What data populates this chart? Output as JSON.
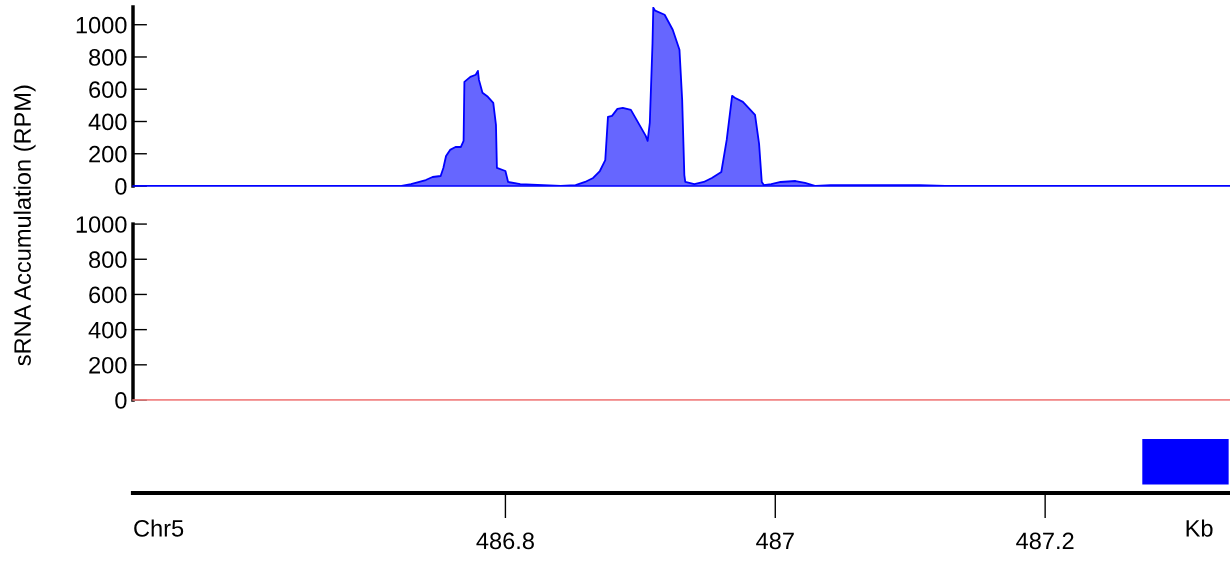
{
  "chart_data": [
    {
      "type": "area",
      "ylabel": "sRNA Accumulation (RPM)",
      "xlim": [
        486.524,
        487.337
      ],
      "ylim": [
        0,
        1110
      ],
      "yticks": [
        0,
        200,
        400,
        600,
        800,
        1000
      ],
      "tick_labels": "y",
      "grid": false,
      "series": [
        {
          "color": "#0000ff",
          "x": [
            486.524,
            486.722,
            486.73,
            486.741,
            486.746,
            486.752,
            486.754,
            486.756,
            486.759,
            486.763,
            486.767,
            486.769,
            486.7696,
            486.774,
            486.778,
            486.7796,
            486.7804,
            486.783,
            486.787,
            486.791,
            486.793,
            486.7937,
            486.8,
            486.802,
            486.811,
            486.841,
            486.852,
            486.859,
            486.865,
            486.87,
            486.874,
            486.876,
            486.879,
            486.883,
            486.887,
            486.893,
            486.904,
            486.9054,
            486.907,
            486.909,
            486.9096,
            486.911,
            486.918,
            486.924,
            486.929,
            486.931,
            486.9326,
            486.9333,
            486.94,
            486.947,
            486.953,
            486.96,
            486.964,
            486.968,
            486.97,
            486.976,
            486.985,
            486.988,
            486.99,
            486.9915,
            486.997,
            487.004,
            487.015,
            487.022,
            487.03,
            487.041,
            487.107,
            487.126,
            487.137,
            487.337
          ],
          "values": [
            0,
            0,
            12,
            37,
            56,
            62,
            112,
            186,
            224,
            242,
            242,
            280,
            646,
            677,
            690,
            714,
            658,
            578,
            553,
            516,
            379,
            112,
            93,
            25,
            12,
            0,
            6,
            25,
            50,
            93,
            161,
            429,
            435,
            478,
            484,
            472,
            311,
            280,
            391,
            882,
            1106,
            1087,
            1062,
            969,
            845,
            534,
            68,
            25,
            12,
            25,
            50,
            87,
            286,
            559,
            547,
            522,
            441,
            261,
            25,
            6,
            12,
            25,
            31,
            19,
            0,
            6,
            6,
            0,
            0,
            0
          ]
        }
      ]
    },
    {
      "type": "line",
      "xlim": [
        486.524,
        487.337
      ],
      "ylim": [
        0,
        1000
      ],
      "yticks": [
        0,
        200,
        400,
        600,
        800,
        1000
      ],
      "tick_labels": "y",
      "grid": false,
      "series": [
        {
          "color": "#f08080",
          "x": [
            486.524,
            487.337
          ],
          "values": [
            0,
            0
          ]
        }
      ]
    },
    {
      "type": "bar",
      "orientation": "horizontal",
      "categories": [
        null
      ],
      "base": [
        487.272
      ],
      "values": [
        0.064
      ],
      "colors": [
        "#0000ff"
      ],
      "xlim": [
        486.524,
        487.337
      ],
      "xticks": [
        486.8,
        487,
        487.2
      ],
      "tick_labels": "x",
      "grid": false,
      "annotations": [
        "Chr5",
        "Kb"
      ]
    }
  ]
}
